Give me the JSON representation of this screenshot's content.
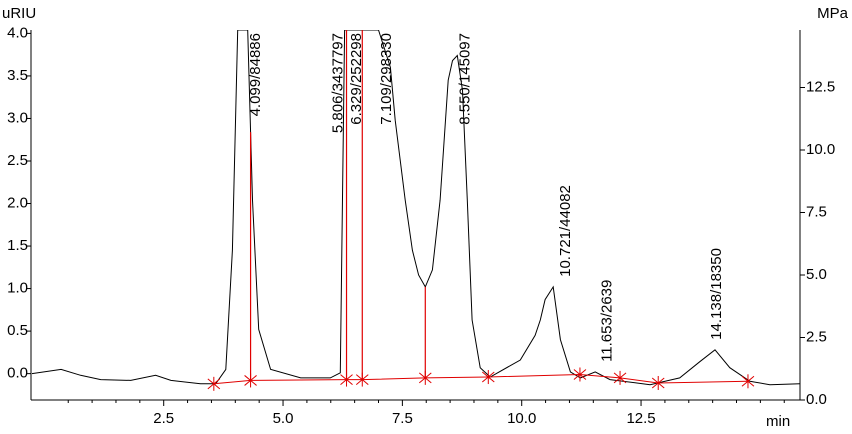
{
  "chart_data": {
    "type": "line",
    "y_label": "uRIU",
    "y2_label": "MPa",
    "x_label": "min",
    "x": [
      -0.26,
      0.35,
      0.76,
      1.18,
      1.81,
      2.33,
      2.65,
      3.27,
      3.59,
      3.8,
      3.94,
      4.05,
      4.26,
      4.36,
      4.49,
      4.74,
      5.37,
      5.99,
      6.2,
      6.29,
      6.41,
      6.66,
      7.0,
      7.25,
      7.35,
      7.56,
      7.71,
      7.84,
      7.98,
      8.13,
      8.29,
      8.46,
      8.55,
      8.65,
      8.76,
      8.86,
      8.96,
      9.13,
      9.34,
      9.97,
      10.28,
      10.39,
      10.49,
      10.66,
      10.81,
      11.02,
      11.23,
      11.54,
      11.85,
      12.69,
      13.31,
      13.73,
      14.05,
      14.36,
      14.78,
      15.2,
      15.83
    ],
    "series": [
      {
        "color": "#000000",
        "values": [
          0.0,
          0.05,
          -0.02,
          -0.07,
          -0.08,
          -0.02,
          -0.08,
          -0.12,
          -0.12,
          0.05,
          1.45,
          4.04,
          4.04,
          2.04,
          0.52,
          0.05,
          -0.05,
          -0.05,
          0.01,
          4.04,
          4.04,
          4.04,
          4.04,
          3.6,
          2.98,
          2.04,
          1.45,
          1.16,
          1.02,
          1.22,
          2.04,
          3.45,
          3.68,
          3.74,
          3.33,
          2.04,
          0.63,
          0.07,
          -0.04,
          0.16,
          0.45,
          0.63,
          0.87,
          1.02,
          0.4,
          0.02,
          -0.05,
          0.02,
          -0.07,
          -0.13,
          -0.05,
          0.14,
          0.28,
          0.07,
          -0.09,
          -0.13,
          -0.12
        ]
      }
    ],
    "baseline": {
      "color": "#e00000",
      "x": [
        3.55,
        4.32,
        6.33,
        6.66,
        7.98,
        9.3,
        11.22,
        12.06,
        12.86,
        14.74
      ],
      "values": [
        -0.12,
        -0.08,
        -0.07,
        -0.07,
        -0.05,
        -0.04,
        -0.01,
        -0.05,
        -0.11,
        -0.09
      ]
    },
    "cut_lines": [
      4.32,
      6.33,
      6.66,
      7.98
    ],
    "peak_labels": [
      {
        "text": "4.099/84886",
        "x": 4.43
      },
      {
        "text": "5.806/3437797",
        "x": 6.16
      },
      {
        "text": "6.329/252298",
        "x": 6.55
      },
      {
        "text": "7.109/298330",
        "x": 7.18
      },
      {
        "text": "8.550/145097",
        "x": 8.82
      },
      {
        "text": "10.721/44082",
        "x": 10.93
      },
      {
        "text": "11.653/2639",
        "x": 11.8
      },
      {
        "text": "14.138/18350",
        "x": 14.09
      }
    ],
    "xlim": [
      -0.28,
      15.83
    ],
    "xticks": [
      2.5,
      {
        "value": 5,
        "label": "5.0"
      },
      7.5,
      {
        "value": 10,
        "label": "10.0"
      },
      12.5
    ],
    "xminorticks": [
      0.5,
      1,
      1.5,
      2,
      3,
      3.5,
      4,
      4.5,
      5.5,
      6,
      6.5,
      7,
      8,
      8.5,
      9,
      9.5,
      10.5,
      11,
      11.5,
      12,
      13,
      13.5,
      14,
      14.5,
      15,
      15.5
    ],
    "ylim": [
      -0.31,
      4.04
    ],
    "yticks": [
      {
        "value": 0,
        "label": "0.0"
      },
      0.5,
      {
        "value": 1,
        "label": "1.0"
      },
      1.5,
      {
        "value": 2,
        "label": "2.0"
      },
      2.5,
      {
        "value": 3,
        "label": "3.0"
      },
      3.5,
      {
        "value": 4,
        "label": "4.0"
      }
    ],
    "y2lim": [
      0,
      14.8
    ],
    "y2ticks": [
      {
        "value": 0,
        "label": "0.0"
      },
      2.5,
      {
        "value": 5,
        "label": "5.0"
      },
      7.5,
      {
        "value": 10,
        "label": "10.0"
      },
      12.5
    ]
  }
}
